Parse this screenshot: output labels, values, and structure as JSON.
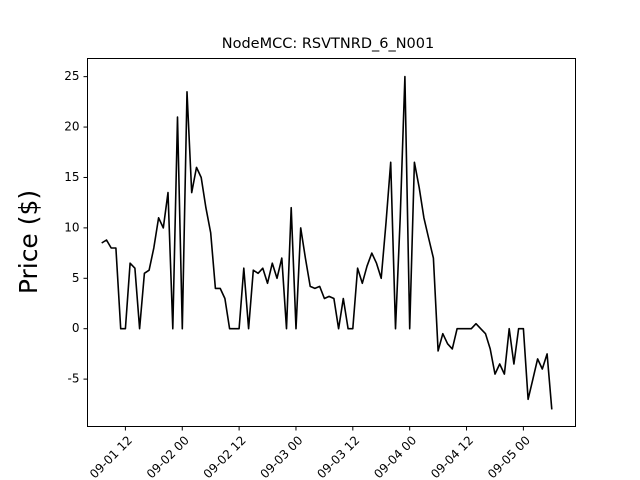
{
  "chart_data": {
    "type": "line",
    "title": "NodeMCC: RSVTNRD_6_N001",
    "ylabel": "Price ($)",
    "color": "#000000",
    "x": [
      "09-01 07",
      "09-01 08",
      "09-01 09",
      "09-01 10",
      "09-01 11",
      "09-01 12",
      "09-01 13",
      "09-01 14",
      "09-01 15",
      "09-01 16",
      "09-01 17",
      "09-01 18",
      "09-01 19",
      "09-01 20",
      "09-01 21",
      "09-01 22",
      "09-01 23",
      "09-02 00",
      "09-02 01",
      "09-02 02",
      "09-02 03",
      "09-02 04",
      "09-02 05",
      "09-02 06",
      "09-02 07",
      "09-02 08",
      "09-02 09",
      "09-02 10",
      "09-02 11",
      "09-02 12",
      "09-02 13",
      "09-02 14",
      "09-02 15",
      "09-02 16",
      "09-02 17",
      "09-02 18",
      "09-02 19",
      "09-02 20",
      "09-02 21",
      "09-02 22",
      "09-02 23",
      "09-03 00",
      "09-03 01",
      "09-03 02",
      "09-03 03",
      "09-03 04",
      "09-03 05",
      "09-03 06",
      "09-03 07",
      "09-03 08",
      "09-03 09",
      "09-03 10",
      "09-03 11",
      "09-03 12",
      "09-03 13",
      "09-03 14",
      "09-03 15",
      "09-03 16",
      "09-03 17",
      "09-03 18",
      "09-03 19",
      "09-03 20",
      "09-03 21",
      "09-03 22",
      "09-03 23",
      "09-04 00",
      "09-04 01",
      "09-04 02",
      "09-04 03",
      "09-04 04",
      "09-04 05",
      "09-04 06",
      "09-04 07",
      "09-04 08",
      "09-04 09",
      "09-04 10",
      "09-04 11",
      "09-04 12",
      "09-04 13",
      "09-04 14",
      "09-04 15",
      "09-04 16",
      "09-04 17",
      "09-04 18",
      "09-04 19",
      "09-04 20",
      "09-04 21",
      "09-04 22",
      "09-04 23",
      "09-05 00",
      "09-05 01",
      "09-05 02",
      "09-05 03",
      "09-05 04",
      "09-05 05",
      "09-05 06"
    ],
    "values": [
      8.5,
      8.8,
      8,
      8,
      0,
      0,
      6.5,
      6,
      0,
      5.5,
      5.8,
      8,
      11,
      10,
      13.5,
      0,
      21,
      0,
      23.5,
      13.5,
      16,
      15,
      12,
      9.5,
      4,
      4,
      3,
      0,
      0,
      0,
      6,
      0,
      5.8,
      5.5,
      6,
      4.5,
      6.5,
      5,
      7,
      0,
      12,
      0,
      10,
      7,
      4.2,
      4,
      4.2,
      3,
      3.2,
      3,
      0,
      3,
      0,
      0,
      6,
      4.5,
      6.2,
      7.5,
      6.5,
      5,
      10.5,
      16.5,
      0,
      11,
      25,
      0,
      16.5,
      14,
      11,
      9,
      7,
      -2.2,
      -0.5,
      -1.5,
      -2,
      0,
      0,
      0,
      0,
      0.5,
      0,
      -0.5,
      -2,
      -4.5,
      -3.5,
      -4.5,
      0,
      -3.5,
      0,
      0,
      -7,
      -5,
      -3,
      -4,
      -2.5,
      -8
    ],
    "xlim": [
      "09-01 04",
      "09-05 11"
    ],
    "xticks": [
      "09-01 12",
      "09-02 00",
      "09-02 12",
      "09-03 00",
      "09-03 12",
      "09-04 00",
      "09-04 12",
      "09-05 00"
    ],
    "ylim": [
      -9.7,
      26.8
    ],
    "yticks": [
      -5,
      0,
      5,
      10,
      15,
      20,
      25
    ]
  }
}
